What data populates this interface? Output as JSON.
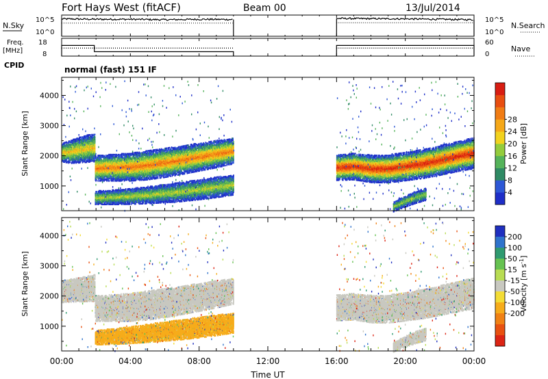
{
  "header": {
    "title": "Fort Hays West (fitACF)",
    "beam": "Beam 00",
    "date": "13/Jul/2014"
  },
  "chart_data": [
    {
      "type": "line",
      "panel": "noise",
      "left_label": "N.Sky",
      "right_label": "N.Search",
      "left_ticks": [
        "10^5",
        "10^0"
      ],
      "right_ticks": [
        "10^5",
        "10^0"
      ],
      "series": [
        {
          "name": "N.Sky",
          "style": "solid",
          "segments": [
            {
              "x": [
                0.0,
                2.0,
                4.0,
                6.0,
                8.0,
                10.0
              ],
              "y": [
                0.82,
                0.8,
                0.8,
                0.78,
                0.8,
                0.79
              ]
            },
            {
              "x": [
                16.0,
                18.0,
                20.0,
                22.0,
                24.0
              ],
              "y": [
                0.84,
                0.83,
                0.82,
                0.8,
                0.78
              ]
            }
          ]
        },
        {
          "name": "N.Search",
          "style": "dotted",
          "segments": [
            {
              "x": [
                0.0,
                10.0
              ],
              "y": [
                0.62,
                0.62
              ]
            },
            {
              "x": [
                16.0,
                24.0
              ],
              "y": [
                0.64,
                0.64
              ]
            }
          ]
        }
      ]
    },
    {
      "type": "line",
      "panel": "freq",
      "left_label": "Freq.",
      "left_unit": "[MHz]",
      "right_label": "Nave",
      "left_ticks": [
        "18",
        "8"
      ],
      "right_ticks": [
        "60",
        "0"
      ],
      "series": [
        {
          "name": "Freq.",
          "style": "solid",
          "x": [
            0.0,
            1.9,
            1.9,
            10.0
          ],
          "y": [
            0.6,
            0.6,
            0.25,
            0.25
          ],
          "x2": [
            16.0,
            24.0
          ],
          "y2": [
            0.6,
            0.6
          ]
        },
        {
          "name": "Nave",
          "style": "dotted",
          "x": [
            0.0,
            10.0
          ],
          "y": [
            0.45,
            0.45
          ],
          "x2": [
            16.0,
            24.0
          ],
          "y2": [
            0.45,
            0.45
          ]
        }
      ]
    },
    {
      "type": "text",
      "panel": "cpid",
      "label": "CPID",
      "text": "normal (fast) 151 IF"
    },
    {
      "type": "heatmap",
      "panel": "power",
      "xlim": [
        0,
        24
      ],
      "ylim": [
        180,
        4600
      ],
      "ylabel": "Slant Range [km]",
      "yticks": [
        1000,
        2000,
        3000,
        4000
      ],
      "colorbar_label": "Power [dB]",
      "colorbar_ticks": [
        4,
        8,
        12,
        16,
        20,
        24,
        28
      ],
      "colorbar_colors": [
        "#1e2ec8",
        "#2d58d6",
        "#2f8a64",
        "#55b35a",
        "#94cc3c",
        "#f2d21e",
        "#f5a819",
        "#f07c14",
        "#e84e10",
        "#d81d12"
      ],
      "bands": [
        {
          "x": [
            0.0,
            0.5,
            1.0,
            1.5,
            1.95
          ],
          "center": [
            2100,
            2120,
            2180,
            2230,
            2260
          ],
          "width": [
            300,
            380,
            420,
            450,
            460
          ],
          "peak": 0.62
        },
        {
          "x": [
            1.95,
            3.0,
            4.0,
            5.0,
            6.0,
            7.0,
            8.0,
            9.0,
            10.0
          ],
          "center": [
            1580,
            1600,
            1620,
            1680,
            1760,
            1850,
            1950,
            2050,
            2150
          ],
          "width": [
            420,
            440,
            460,
            480,
            480,
            470,
            460,
            450,
            420
          ],
          "peak": 0.78
        },
        {
          "x": [
            1.95,
            3.0,
            4.0,
            5.0,
            6.0,
            7.0,
            8.0,
            9.0,
            10.0
          ],
          "center": [
            600,
            620,
            650,
            690,
            740,
            800,
            870,
            950,
            1030
          ],
          "width": [
            220,
            240,
            260,
            280,
            300,
            320,
            330,
            340,
            330
          ],
          "peak": 0.5
        },
        {
          "x": [
            16.0,
            17.0,
            18.0,
            19.0,
            20.0,
            21.0,
            22.0,
            23.0,
            24.0
          ],
          "center": [
            1600,
            1640,
            1560,
            1560,
            1640,
            1720,
            1840,
            1970,
            2080
          ],
          "width": [
            420,
            440,
            450,
            460,
            470,
            480,
            490,
            500,
            510
          ],
          "peak": 0.95
        },
        {
          "x": [
            19.3,
            20.0,
            20.6,
            21.2
          ],
          "center": [
            300,
            480,
            620,
            720
          ],
          "width": [
            160,
            180,
            200,
            200
          ],
          "peak": 0.45
        }
      ]
    },
    {
      "type": "heatmap",
      "panel": "velocity",
      "xlim": [
        0,
        24
      ],
      "ylim": [
        180,
        4600
      ],
      "ylabel": "Slant Range [km]",
      "yticks": [
        1000,
        2000,
        3000,
        4000
      ],
      "colorbar_label": "Velocity [m s^-1]",
      "colorbar_ticks": [
        200,
        100,
        50,
        15,
        -15,
        -50,
        -100,
        -200
      ],
      "colorbar_colors": [
        "#1f2fbf",
        "#2f73cc",
        "#2f9a70",
        "#66c251",
        "#b8dc53",
        "#c8c8c0",
        "#f3dc35",
        "#f6ac1b",
        "#f08114",
        "#e85110",
        "#dc2414"
      ],
      "bands": [
        {
          "x": [
            0.0,
            1.95
          ],
          "center": [
            2140,
            2260
          ],
          "width": [
            360,
            440
          ],
          "color": "#c8c8c0"
        },
        {
          "x": [
            1.95,
            3.0,
            4.0,
            5.0,
            6.0,
            7.0,
            8.0,
            9.0,
            10.0
          ],
          "center": [
            1580,
            1600,
            1620,
            1680,
            1760,
            1850,
            1950,
            2050,
            2150
          ],
          "width": [
            420,
            440,
            460,
            480,
            480,
            470,
            460,
            450,
            420
          ],
          "color": "#c8c8c0"
        },
        {
          "x": [
            1.95,
            3.0,
            4.0,
            5.0,
            6.0,
            7.0,
            8.0,
            9.0,
            10.0
          ],
          "center": [
            620,
            650,
            700,
            760,
            820,
            880,
            950,
            1020,
            1100
          ],
          "width": [
            240,
            260,
            280,
            300,
            320,
            330,
            340,
            340,
            330
          ],
          "color": "#f6ac1b"
        },
        {
          "x": [
            16.0,
            17.0,
            18.0,
            19.0,
            20.0,
            21.0,
            22.0,
            23.0,
            24.0
          ],
          "center": [
            1600,
            1640,
            1560,
            1560,
            1640,
            1720,
            1840,
            1970,
            2080
          ],
          "width": [
            420,
            440,
            450,
            460,
            470,
            480,
            490,
            500,
            510
          ],
          "color": "#c8c8c0"
        },
        {
          "x": [
            19.3,
            20.0,
            20.6,
            21.2
          ],
          "center": [
            300,
            480,
            620,
            720
          ],
          "width": [
            160,
            180,
            200,
            200
          ],
          "color": "#c8c8c0"
        }
      ]
    }
  ],
  "x_axis": {
    "label": "Time UT",
    "ticks": [
      {
        "value": 0,
        "label": "00:00"
      },
      {
        "value": 4,
        "label": "04:00"
      },
      {
        "value": 8,
        "label": "08:00"
      },
      {
        "value": 12,
        "label": "12:00"
      },
      {
        "value": 16,
        "label": "16:00"
      },
      {
        "value": 20,
        "label": "20:00"
      },
      {
        "value": 24,
        "label": "00:00"
      }
    ]
  }
}
